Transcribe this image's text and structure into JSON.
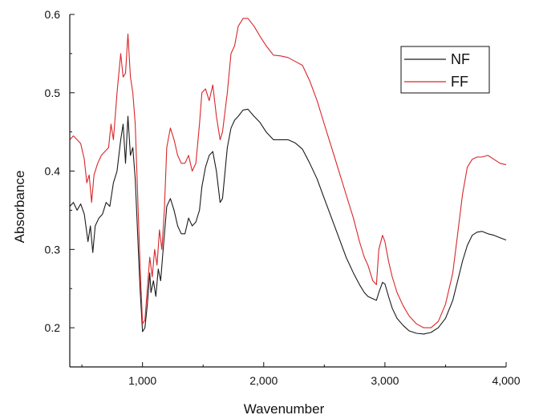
{
  "chart_data": {
    "type": "line",
    "xlabel": "Wavenumber",
    "ylabel": "Absorbance",
    "xlim": [
      400,
      4000
    ],
    "ylim": [
      0.15,
      0.6
    ],
    "x_ticks": [
      1000,
      2000,
      3000,
      4000
    ],
    "x_tick_labels": [
      "1,000",
      "2,000",
      "3,000",
      "4,000"
    ],
    "y_ticks": [
      0.2,
      0.3,
      0.4,
      0.5,
      0.6
    ],
    "y_tick_labels": [
      "0.2",
      "0.3",
      "0.4",
      "0.5",
      "0.6"
    ],
    "grid": false,
    "legend_position": "top-right",
    "series": [
      {
        "name": "NF",
        "color": "#1a1a1a",
        "points": [
          [
            400,
            0.355
          ],
          [
            430,
            0.36
          ],
          [
            460,
            0.35
          ],
          [
            490,
            0.358
          ],
          [
            520,
            0.345
          ],
          [
            550,
            0.31
          ],
          [
            570,
            0.33
          ],
          [
            590,
            0.296
          ],
          [
            610,
            0.33
          ],
          [
            640,
            0.34
          ],
          [
            670,
            0.345
          ],
          [
            700,
            0.36
          ],
          [
            730,
            0.355
          ],
          [
            760,
            0.385
          ],
          [
            790,
            0.4
          ],
          [
            820,
            0.44
          ],
          [
            840,
            0.46
          ],
          [
            860,
            0.41
          ],
          [
            880,
            0.47
          ],
          [
            900,
            0.42
          ],
          [
            920,
            0.43
          ],
          [
            940,
            0.39
          ],
          [
            960,
            0.32
          ],
          [
            980,
            0.25
          ],
          [
            1000,
            0.195
          ],
          [
            1020,
            0.2
          ],
          [
            1040,
            0.23
          ],
          [
            1060,
            0.27
          ],
          [
            1070,
            0.245
          ],
          [
            1090,
            0.26
          ],
          [
            1110,
            0.24
          ],
          [
            1130,
            0.275
          ],
          [
            1150,
            0.26
          ],
          [
            1170,
            0.3
          ],
          [
            1200,
            0.355
          ],
          [
            1230,
            0.365
          ],
          [
            1260,
            0.35
          ],
          [
            1290,
            0.33
          ],
          [
            1320,
            0.32
          ],
          [
            1350,
            0.32
          ],
          [
            1380,
            0.34
          ],
          [
            1410,
            0.33
          ],
          [
            1440,
            0.335
          ],
          [
            1470,
            0.35
          ],
          [
            1490,
            0.38
          ],
          [
            1520,
            0.405
          ],
          [
            1550,
            0.42
          ],
          [
            1580,
            0.425
          ],
          [
            1610,
            0.4
          ],
          [
            1640,
            0.36
          ],
          [
            1660,
            0.365
          ],
          [
            1700,
            0.43
          ],
          [
            1730,
            0.455
          ],
          [
            1760,
            0.465
          ],
          [
            1790,
            0.47
          ],
          [
            1830,
            0.478
          ],
          [
            1870,
            0.479
          ],
          [
            1920,
            0.47
          ],
          [
            1970,
            0.462
          ],
          [
            2020,
            0.45
          ],
          [
            2080,
            0.44
          ],
          [
            2140,
            0.44
          ],
          [
            2200,
            0.44
          ],
          [
            2260,
            0.436
          ],
          [
            2320,
            0.428
          ],
          [
            2380,
            0.41
          ],
          [
            2440,
            0.39
          ],
          [
            2500,
            0.365
          ],
          [
            2560,
            0.34
          ],
          [
            2620,
            0.315
          ],
          [
            2680,
            0.29
          ],
          [
            2740,
            0.27
          ],
          [
            2790,
            0.255
          ],
          [
            2830,
            0.245
          ],
          [
            2860,
            0.24
          ],
          [
            2900,
            0.237
          ],
          [
            2930,
            0.235
          ],
          [
            2950,
            0.245
          ],
          [
            2980,
            0.258
          ],
          [
            3000,
            0.256
          ],
          [
            3030,
            0.24
          ],
          [
            3060,
            0.225
          ],
          [
            3100,
            0.212
          ],
          [
            3150,
            0.203
          ],
          [
            3200,
            0.196
          ],
          [
            3260,
            0.193
          ],
          [
            3320,
            0.192
          ],
          [
            3380,
            0.194
          ],
          [
            3440,
            0.2
          ],
          [
            3500,
            0.212
          ],
          [
            3560,
            0.235
          ],
          [
            3600,
            0.26
          ],
          [
            3640,
            0.285
          ],
          [
            3680,
            0.305
          ],
          [
            3720,
            0.318
          ],
          [
            3760,
            0.322
          ],
          [
            3800,
            0.323
          ],
          [
            3850,
            0.32
          ],
          [
            3900,
            0.318
          ],
          [
            3950,
            0.315
          ],
          [
            4000,
            0.312
          ]
        ]
      },
      {
        "name": "FF",
        "color": "#d8272a",
        "points": [
          [
            400,
            0.44
          ],
          [
            430,
            0.445
          ],
          [
            460,
            0.44
          ],
          [
            490,
            0.435
          ],
          [
            520,
            0.415
          ],
          [
            540,
            0.385
          ],
          [
            560,
            0.395
          ],
          [
            580,
            0.36
          ],
          [
            600,
            0.395
          ],
          [
            630,
            0.41
          ],
          [
            660,
            0.42
          ],
          [
            690,
            0.425
          ],
          [
            720,
            0.43
          ],
          [
            740,
            0.46
          ],
          [
            760,
            0.44
          ],
          [
            790,
            0.5
          ],
          [
            820,
            0.55
          ],
          [
            840,
            0.52
          ],
          [
            860,
            0.525
          ],
          [
            880,
            0.575
          ],
          [
            900,
            0.52
          ],
          [
            920,
            0.5
          ],
          [
            940,
            0.46
          ],
          [
            960,
            0.37
          ],
          [
            980,
            0.28
          ],
          [
            1000,
            0.205
          ],
          [
            1020,
            0.21
          ],
          [
            1040,
            0.25
          ],
          [
            1060,
            0.29
          ],
          [
            1080,
            0.265
          ],
          [
            1100,
            0.3
          ],
          [
            1120,
            0.28
          ],
          [
            1140,
            0.325
          ],
          [
            1160,
            0.3
          ],
          [
            1180,
            0.35
          ],
          [
            1200,
            0.43
          ],
          [
            1230,
            0.455
          ],
          [
            1260,
            0.44
          ],
          [
            1290,
            0.42
          ],
          [
            1320,
            0.41
          ],
          [
            1350,
            0.41
          ],
          [
            1380,
            0.42
          ],
          [
            1410,
            0.4
          ],
          [
            1440,
            0.41
          ],
          [
            1470,
            0.46
          ],
          [
            1490,
            0.5
          ],
          [
            1520,
            0.505
          ],
          [
            1550,
            0.49
          ],
          [
            1580,
            0.51
          ],
          [
            1610,
            0.47
          ],
          [
            1640,
            0.44
          ],
          [
            1660,
            0.45
          ],
          [
            1700,
            0.5
          ],
          [
            1730,
            0.55
          ],
          [
            1760,
            0.56
          ],
          [
            1790,
            0.585
          ],
          [
            1830,
            0.595
          ],
          [
            1870,
            0.595
          ],
          [
            1920,
            0.585
          ],
          [
            1970,
            0.572
          ],
          [
            2020,
            0.56
          ],
          [
            2080,
            0.548
          ],
          [
            2140,
            0.547
          ],
          [
            2200,
            0.545
          ],
          [
            2260,
            0.54
          ],
          [
            2320,
            0.535
          ],
          [
            2380,
            0.515
          ],
          [
            2440,
            0.49
          ],
          [
            2500,
            0.46
          ],
          [
            2560,
            0.43
          ],
          [
            2620,
            0.4
          ],
          [
            2680,
            0.37
          ],
          [
            2740,
            0.34
          ],
          [
            2790,
            0.31
          ],
          [
            2830,
            0.29
          ],
          [
            2860,
            0.28
          ],
          [
            2900,
            0.26
          ],
          [
            2930,
            0.255
          ],
          [
            2950,
            0.3
          ],
          [
            2980,
            0.318
          ],
          [
            3000,
            0.31
          ],
          [
            3030,
            0.285
          ],
          [
            3060,
            0.265
          ],
          [
            3100,
            0.245
          ],
          [
            3150,
            0.228
          ],
          [
            3200,
            0.215
          ],
          [
            3260,
            0.205
          ],
          [
            3320,
            0.2
          ],
          [
            3380,
            0.2
          ],
          [
            3440,
            0.208
          ],
          [
            3500,
            0.23
          ],
          [
            3560,
            0.27
          ],
          [
            3600,
            0.32
          ],
          [
            3640,
            0.37
          ],
          [
            3680,
            0.405
          ],
          [
            3720,
            0.415
          ],
          [
            3760,
            0.418
          ],
          [
            3800,
            0.418
          ],
          [
            3850,
            0.42
          ],
          [
            3900,
            0.415
          ],
          [
            3950,
            0.41
          ],
          [
            4000,
            0.408
          ]
        ]
      }
    ]
  }
}
